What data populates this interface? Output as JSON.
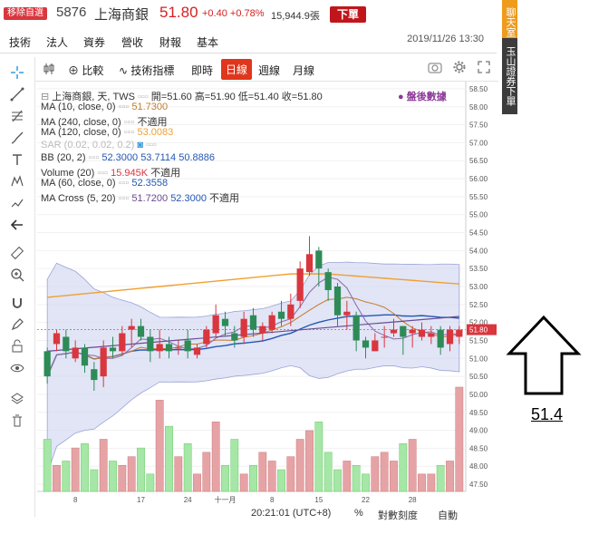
{
  "header": {
    "remove_label": "移除自選",
    "code": "5876",
    "name": "上海商銀",
    "price": "51.80",
    "change": "+0.40 +0.78%",
    "volume": "15,944.9張",
    "order_label": "下單"
  },
  "menu": [
    "技術",
    "法人",
    "資券",
    "營收",
    "財報",
    "基本"
  ],
  "datetime": "2019/11/26 13:30",
  "chart_toolbar": {
    "compare": "比較",
    "indicators": "技術指標",
    "realtime": "即時",
    "daily": "日線",
    "weekly": "週線",
    "monthly": "月線"
  },
  "legend": {
    "title": "上海商銀, 天, TWS",
    "ohlc": "開=51.60  高=51.90  低=51.40  收=51.80",
    "after_hours": "盤後數據",
    "ma10": "MA (10, close, 0)",
    "ma10_val": "51.7300",
    "ma240": "MA (240, close, 0)",
    "ma240_val": "不適用",
    "ma120": "MA (120, close, 0)",
    "ma120_val": "53.0083",
    "sar": "SAR (0.02, 0.02, 0.2)",
    "bb": "BB (20, 2)",
    "bb_vals": [
      "52.3000",
      "53.7114",
      "50.8886"
    ],
    "volume": "Volume (20)",
    "volume_vals": [
      "15.945K",
      "不適用"
    ],
    "ma60": "MA (60, close, 0)",
    "ma60_val": "52.3558",
    "macross": "MA Cross (5, 20)",
    "macross_vals": [
      "51.7200",
      "52.3000",
      "不適用"
    ]
  },
  "side_tabs": [
    "聊天室",
    "玉山證券下單"
  ],
  "annotation": "51.4",
  "footer": {
    "time": "20:21:01 (UTC+8)",
    "pct": "%",
    "log": "對數刻度",
    "auto": "自動"
  },
  "colors": {
    "up": "#d9363e",
    "down": "#2e8b57",
    "band": "#c6cdea",
    "accent": "#e0361c"
  },
  "chart_data": {
    "type": "candlestick",
    "ylim": [
      47.3,
      58.7
    ],
    "y_ticks": [
      "58.50",
      "58.00",
      "57.50",
      "57.00",
      "56.50",
      "56.00",
      "55.50",
      "55.00",
      "54.50",
      "54.00",
      "53.50",
      "53.00",
      "52.50",
      "52.00",
      "51.50",
      "51.00",
      "50.50",
      "50.00",
      "49.50",
      "49.00",
      "48.50",
      "48.00",
      "47.50"
    ],
    "current_price": "51.80",
    "x_labels": [
      "8",
      "17",
      "24",
      "十一月",
      "8",
      "15",
      "22",
      "28"
    ],
    "candles": [
      [
        51.2,
        50.5,
        51.3,
        50.3
      ],
      [
        51.4,
        51.7,
        51.8,
        51.2
      ],
      [
        51.6,
        51.2,
        51.8,
        51.0
      ],
      [
        51.0,
        51.3,
        51.5,
        50.9
      ],
      [
        51.3,
        50.8,
        51.4,
        50.6
      ],
      [
        50.7,
        50.4,
        50.9,
        50.1
      ],
      [
        50.5,
        51.3,
        51.5,
        50.2
      ],
      [
        51.3,
        51.2,
        51.6,
        51.0
      ],
      [
        51.2,
        51.7,
        51.9,
        51.1
      ],
      [
        51.8,
        51.9,
        52.1,
        51.3
      ],
      [
        51.9,
        51.6,
        52.1,
        51.5
      ],
      [
        51.6,
        51.2,
        51.8,
        50.9
      ],
      [
        51.2,
        51.4,
        51.8,
        51.0
      ],
      [
        51.4,
        51.2,
        51.6,
        51.0
      ],
      [
        51.3,
        51.3,
        51.5,
        51.1
      ],
      [
        51.5,
        51.2,
        51.8,
        51.0
      ],
      [
        51.1,
        51.3,
        51.4,
        51.0
      ],
      [
        51.4,
        51.8,
        51.9,
        51.3
      ],
      [
        51.7,
        52.2,
        52.5,
        51.6
      ],
      [
        52.1,
        51.9,
        52.3,
        51.6
      ],
      [
        51.7,
        51.5,
        51.9,
        51.3
      ],
      [
        51.6,
        52.1,
        52.3,
        51.4
      ],
      [
        52.2,
        51.8,
        52.4,
        51.6
      ],
      [
        51.7,
        51.9,
        52.0,
        51.5
      ],
      [
        51.8,
        52.2,
        52.3,
        51.7
      ],
      [
        52.3,
        52.1,
        52.6,
        51.9
      ],
      [
        52.1,
        52.5,
        52.8,
        51.9
      ],
      [
        52.6,
        53.5,
        53.7,
        52.4
      ],
      [
        53.4,
        53.9,
        54.4,
        53.3
      ],
      [
        54.0,
        53.5,
        54.1,
        53.0
      ],
      [
        53.4,
        52.9,
        53.5,
        52.6
      ],
      [
        53.0,
        52.2,
        53.1,
        51.9
      ],
      [
        52.2,
        52.3,
        52.6,
        51.8
      ],
      [
        52.2,
        51.5,
        52.3,
        51.2
      ],
      [
        51.5,
        51.3,
        51.6,
        51.0
      ],
      [
        51.2,
        51.5,
        51.7,
        51.2
      ],
      [
        51.6,
        51.6,
        51.9,
        51.3
      ],
      [
        51.7,
        51.8,
        52.1,
        51.6
      ],
      [
        51.9,
        51.6,
        51.9,
        51.1
      ],
      [
        51.7,
        51.8,
        51.9,
        51.3
      ],
      [
        51.6,
        51.8,
        52.0,
        51.5
      ],
      [
        51.6,
        51.7,
        51.9,
        51.4
      ],
      [
        51.8,
        51.3,
        51.9,
        51.1
      ],
      [
        51.4,
        51.8,
        51.9,
        51.2
      ],
      [
        51.6,
        51.8,
        51.9,
        51.4
      ]
    ],
    "volumes": [
      12,
      6,
      7,
      10,
      11,
      5,
      12,
      7,
      6,
      8,
      10,
      4,
      21,
      15,
      8,
      11,
      4,
      9,
      16,
      6,
      12,
      4,
      6,
      9,
      7,
      5,
      8,
      12,
      14,
      16,
      9,
      5,
      7,
      6,
      4,
      8,
      9,
      7,
      11,
      12,
      4,
      4,
      6,
      7,
      24
    ]
  }
}
